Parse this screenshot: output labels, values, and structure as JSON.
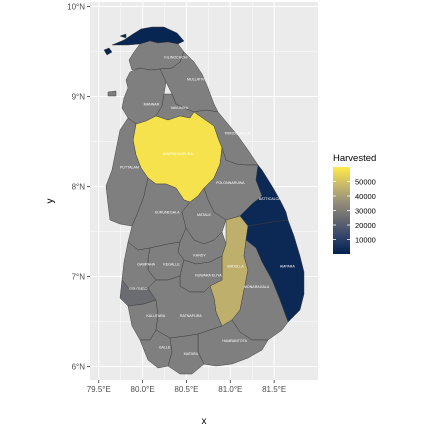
{
  "chart_data": {
    "type": "choropleth",
    "xlabel": "x",
    "ylabel": "y",
    "x_ticks": [
      "79.5°E",
      "80.0°E",
      "80.5°E",
      "81.0°E",
      "81.5°E"
    ],
    "y_ticks": [
      "6°N",
      "7°N",
      "8°N",
      "9°N",
      "10°N"
    ],
    "xlim": [
      79.4,
      82.0
    ],
    "ylim": [
      5.85,
      10.05
    ],
    "grid": true,
    "legend": {
      "title": "Harvested",
      "placement": "right",
      "breaks": [
        10000,
        20000,
        30000,
        40000,
        50000
      ],
      "break_labels": [
        "10000",
        "20000",
        "30000",
        "40000",
        "50000"
      ],
      "range": [
        0,
        60000
      ],
      "colors": [
        "#00204d",
        "#31446b",
        "#666970",
        "#958f78",
        "#cbba69",
        "#ffea46"
      ]
    },
    "missing_color": "#7f7f7f",
    "districts": [
      {
        "name": "JAFFNA",
        "label": "",
        "lon": 80.1,
        "lat": 9.72,
        "value": 2000
      },
      {
        "name": "KILINOCHCHI",
        "label": "KILINOCHCHI",
        "lon": 80.38,
        "lat": 9.42,
        "value": null
      },
      {
        "name": "MULLATIVU",
        "label": "MULLATIVU",
        "lon": 80.62,
        "lat": 9.18,
        "value": null
      },
      {
        "name": "MANNAR",
        "label": "MANNAR",
        "lon": 80.1,
        "lat": 8.9,
        "value": null
      },
      {
        "name": "VAVUNIYA",
        "label": "VAVUNIYA",
        "lon": 80.42,
        "lat": 8.86,
        "value": null
      },
      {
        "name": "TRINCOMALEE",
        "label": "TRINCOMALEE",
        "lon": 81.08,
        "lat": 8.58,
        "value": null
      },
      {
        "name": "ANURADHAPURA",
        "label": "ANURADHAPURA",
        "lon": 80.4,
        "lat": 8.35,
        "value": 58000
      },
      {
        "name": "PUTTALAM",
        "label": "PUTTALAM",
        "lon": 79.85,
        "lat": 8.2,
        "value": null
      },
      {
        "name": "POLONNARUWA",
        "label": "POLONNARUWA",
        "lon": 81.0,
        "lat": 8.03,
        "value": null
      },
      {
        "name": "BATTICALOA",
        "label": "BATTICALOA",
        "lon": 81.45,
        "lat": 7.85,
        "value": 3000
      },
      {
        "name": "KURUNEGALA",
        "label": "KURUNEGALA",
        "lon": 80.28,
        "lat": 7.7,
        "value": null
      },
      {
        "name": "MATALE",
        "label": "MATALE",
        "lon": 80.7,
        "lat": 7.67,
        "value": null
      },
      {
        "name": "KANDY",
        "label": "KANDY",
        "lon": 80.65,
        "lat": 7.22,
        "value": null
      },
      {
        "name": "KEGALLE",
        "label": "KEGALLE",
        "lon": 80.33,
        "lat": 7.12,
        "value": null
      },
      {
        "name": "GAMPAHA",
        "label": "GAMPAHA",
        "lon": 80.04,
        "lat": 7.12,
        "value": null
      },
      {
        "name": "BADULLA",
        "label": "BADULLA",
        "lon": 81.06,
        "lat": 7.1,
        "value": 45000
      },
      {
        "name": "AMPARA",
        "label": "AMPARA",
        "lon": 81.65,
        "lat": 7.1,
        "value": 3000
      },
      {
        "name": "NUWARA ELIYA",
        "label": "NUWARA ELIYA",
        "lon": 80.75,
        "lat": 7.0,
        "value": null
      },
      {
        "name": "COLOMBO",
        "label": "COLOMBO",
        "lon": 79.95,
        "lat": 6.85,
        "value": 25000
      },
      {
        "name": "MONARAGALA",
        "label": "MONARAGALA",
        "lon": 81.3,
        "lat": 6.87,
        "value": null
      },
      {
        "name": "KALUTARA",
        "label": "KALUTARA",
        "lon": 80.15,
        "lat": 6.55,
        "value": null
      },
      {
        "name": "RATNAPURA",
        "label": "RATNAPURA",
        "lon": 80.55,
        "lat": 6.55,
        "value": null
      },
      {
        "name": "HAMBANTOTA",
        "label": "HAMBANTOTA",
        "lon": 81.05,
        "lat": 6.27,
        "value": null
      },
      {
        "name": "GALLE",
        "label": "GALLE",
        "lon": 80.25,
        "lat": 6.2,
        "value": null
      },
      {
        "name": "MATARA",
        "label": "MATARA",
        "lon": 80.55,
        "lat": 6.13,
        "value": null
      }
    ]
  }
}
